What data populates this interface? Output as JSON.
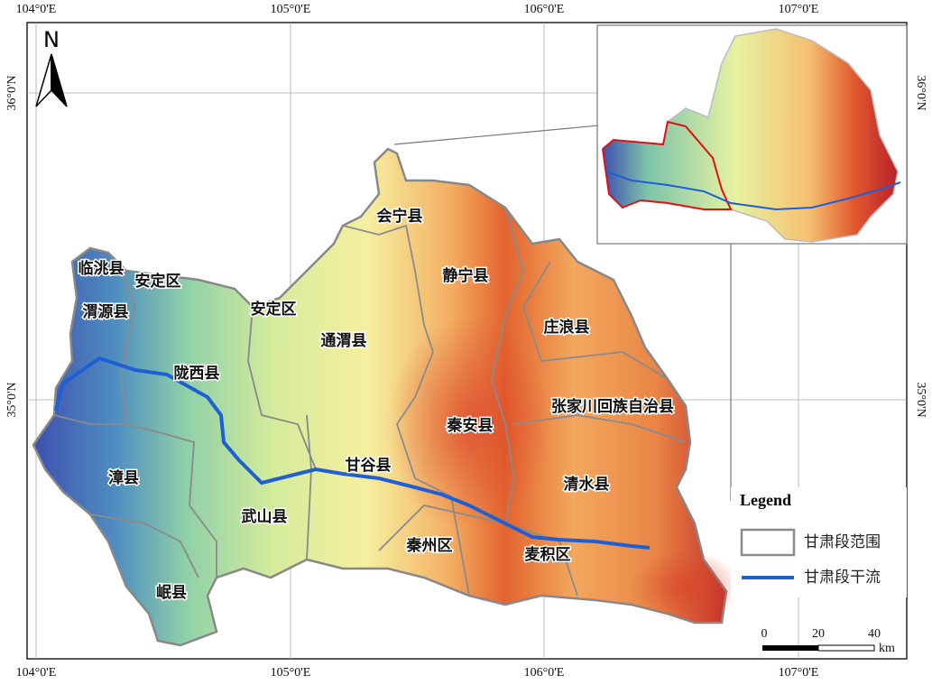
{
  "map": {
    "lon_labels": [
      "104°0'E",
      "105°0'E",
      "106°0'E",
      "107°0'E"
    ],
    "lat_labels": [
      "36°0'N",
      "35°0'N"
    ],
    "north": "N",
    "counties": [
      "会宁县",
      "临洮县",
      "安定区",
      "渭源县",
      "安定区",
      "静宁县",
      "通渭县",
      "庄浪县",
      "陇西县",
      "张家川回族自治县",
      "秦安县",
      "漳县",
      "甘谷县",
      "清水县",
      "武山县",
      "秦州区",
      "麦积区",
      "岷县"
    ],
    "legend": {
      "title": "Legend",
      "items": [
        "甘肃段范围",
        "甘肃段干流"
      ]
    },
    "scale": {
      "ticks": [
        "0",
        "20",
        "40"
      ],
      "unit": "km"
    }
  }
}
